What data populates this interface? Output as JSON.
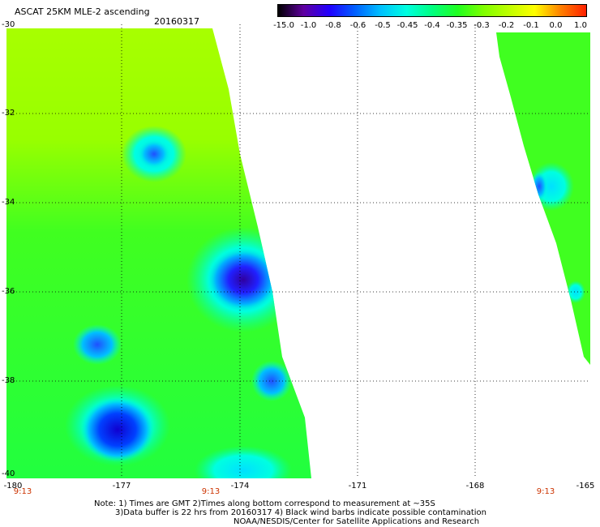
{
  "header": {
    "title": "ASCAT 25KM MLE-2 ascending",
    "date": "20160317"
  },
  "colorbar": {
    "labels": [
      "-15.0",
      "-1.0",
      "-0.8",
      "-0.6",
      "-0.5",
      "-0.45",
      "-0.4",
      "-0.35",
      "-0.3",
      "-0.2",
      "-0.1",
      "0.0",
      "1.0"
    ],
    "colors": [
      "#000000",
      "#6000a0",
      "#2000ff",
      "#0060ff",
      "#00c0ff",
      "#00ffe0",
      "#00ff80",
      "#20ff20",
      "#80ff00",
      "#c0ff00",
      "#ffff00",
      "#ff8000",
      "#ff2000"
    ]
  },
  "axes": {
    "lat_labels": [
      "-30",
      "-32",
      "-34",
      "-36",
      "-38",
      "-40"
    ],
    "lon_labels": [
      "-180",
      "-177",
      "-174",
      "-171",
      "-168",
      "-165"
    ],
    "times": [
      "9:13",
      "9:13",
      "9:13"
    ]
  },
  "notes": [
    "Note: 1) Times are GMT 2)Times along bottom correspond to measurement at ~35S",
    "3)Data buffer is 22 hrs from 20160317 4) Black wind barbs indicate possible contamination",
    "NOAA/NESDIS/Center for Satellite Applications and Research"
  ]
}
